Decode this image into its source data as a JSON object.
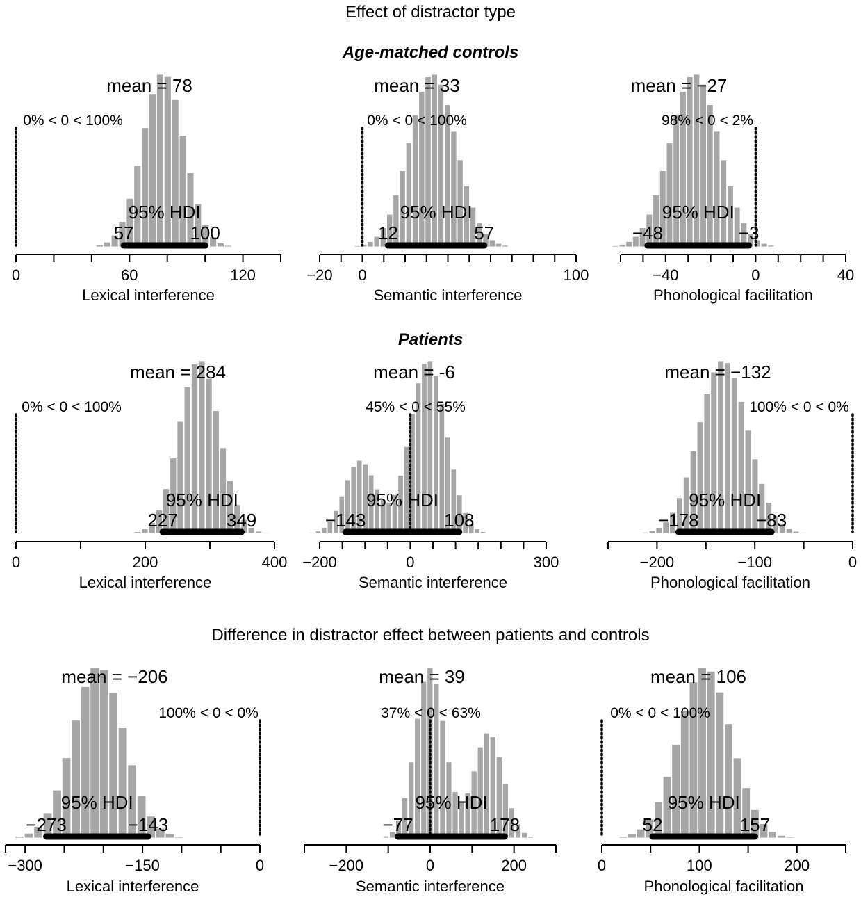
{
  "titles": {
    "main": "Effect of distractor type",
    "controls": "Age-matched controls",
    "patients": "Patients",
    "difference": "Difference in distractor effect between patients and controls"
  },
  "colors": {
    "bars": "#a6a6a6",
    "bar_edge": "#ffffff",
    "hdi": "#000000",
    "axis": "#000000"
  },
  "chart_data": [
    {
      "type": "bar",
      "group": "controls",
      "xlabel": "Lexical interference",
      "mean_label": "mean = 78",
      "mean": 78,
      "sd": 11,
      "xlim": [
        0,
        140
      ],
      "ticks": [
        0,
        20,
        40,
        60,
        80,
        100,
        120,
        140
      ],
      "tick_labels": {
        "0": "0",
        "60": "60",
        "120": "120"
      },
      "hdi_label": "95% HDI",
      "hdi": [
        57,
        100
      ],
      "hdi_low_label": "57",
      "hdi_high_label": "100",
      "ref_label": "0% < 0 < 100%",
      "ref": 0,
      "bin": 4
    },
    {
      "type": "bar",
      "group": "controls",
      "xlabel": "Semantic interference",
      "mean_label": "mean = 33",
      "mean": 33,
      "sd": 11,
      "xlim": [
        -20,
        100
      ],
      "ticks": [
        -20,
        -10,
        0,
        10,
        20,
        30,
        40,
        50,
        60,
        70,
        80,
        90,
        100
      ],
      "tick_labels": {
        "-20": "−20",
        "0": "0",
        "100": "100"
      },
      "hdi_label": "95% HDI",
      "hdi": [
        12,
        57
      ],
      "hdi_low_label": "12",
      "hdi_high_label": "57",
      "ref_label": "0% < 0 < 100%",
      "ref": 0,
      "bin": 3
    },
    {
      "type": "bar",
      "group": "controls",
      "xlabel": "Phonological facilitation",
      "mean_label": "mean = −27",
      "mean": -27,
      "sd": 11,
      "xlim": [
        -60,
        40
      ],
      "ticks": [
        -60,
        -50,
        -40,
        -30,
        -20,
        -10,
        0,
        10,
        20,
        30,
        40
      ],
      "tick_labels": {
        "-40": "−40",
        "0": "0",
        "40": "40"
      },
      "hdi_label": "95% HDI",
      "hdi": [
        -48,
        -3
      ],
      "hdi_low_label": "−48",
      "hdi_high_label": "−3",
      "ref_label": "98% < 0 < 2%",
      "ref": 0,
      "bin": 3
    },
    {
      "type": "bar",
      "group": "patients",
      "xlabel": "Lexical interference",
      "mean_label": "mean = 284",
      "mean": 284,
      "sd": 31,
      "xlim": [
        0,
        400
      ],
      "ticks": [
        0,
        100,
        200,
        300,
        400
      ],
      "tick_labels": {
        "0": "0",
        "200": "200",
        "400": "400"
      },
      "hdi_label": "95% HDI",
      "hdi": [
        227,
        349
      ],
      "hdi_low_label": "227",
      "hdi_high_label": "349",
      "ref_label": "0% < 0 < 100%",
      "ref": 0,
      "bin": 11
    },
    {
      "type": "bar",
      "group": "patients",
      "xlabel": "Semantic interference",
      "mean_label": "mean = -6",
      "mean": -6,
      "sd": 70,
      "bimodal": [
        [
          -110,
          35,
          0.42
        ],
        [
          40,
          40,
          1.0
        ]
      ],
      "xlim": [
        -200,
        300
      ],
      "ticks": [
        -200,
        -150,
        -100,
        -50,
        0,
        50,
        100,
        150,
        200,
        250,
        300
      ],
      "tick_labels": {
        "-200": "−200",
        "0": "0",
        "300": "300"
      },
      "hdi_label": "95% HDI",
      "hdi": [
        -143,
        108
      ],
      "hdi_low_label": "−143",
      "hdi_high_label": "108",
      "ref_label": "45% < 0 < 55%",
      "ref": 0,
      "bin": 13
    },
    {
      "type": "bar",
      "group": "patients",
      "xlabel": "Phonological facilitation",
      "mean_label": "mean = −132",
      "mean": -132,
      "sd": 25,
      "xlim": [
        -250,
        0
      ],
      "ticks": [
        -250,
        -200,
        -150,
        -100,
        -50,
        0
      ],
      "tick_labels": {
        "-200": "−200",
        "-100": "−100",
        "0": "0"
      },
      "hdi_label": "95% HDI",
      "hdi": [
        -178,
        -83
      ],
      "hdi_low_label": "−178",
      "hdi_high_label": "−83",
      "ref_label": "100% < 0 < 0%",
      "ref": 0,
      "bin": 7
    },
    {
      "type": "bar",
      "group": "difference",
      "xlabel": "Lexical interference",
      "mean_label": "mean = −206",
      "mean": -206,
      "sd": 33,
      "xlim": [
        -325,
        0
      ],
      "ticks": [
        -325,
        -300,
        -250,
        -200,
        -150,
        -100,
        -50,
        0
      ],
      "tick_labels": {
        "-300": "−300",
        "-150": "−150",
        "0": "0"
      },
      "hdi_label": "95% HDI",
      "hdi": [
        -273,
        -143
      ],
      "hdi_low_label": "−273",
      "hdi_high_label": "−143",
      "ref_label": "100% < 0 < 0%",
      "ref": 0,
      "bin": 12
    },
    {
      "type": "bar",
      "group": "difference",
      "xlabel": "Semantic interference",
      "mean_label": "mean = 39",
      "mean": 39,
      "sd": 65,
      "bimodal": [
        [
          0,
          35,
          1.0
        ],
        [
          140,
          35,
          0.62
        ]
      ],
      "xlim": [
        -300,
        300
      ],
      "ticks": [
        -300,
        -200,
        -100,
        0,
        100,
        200,
        300
      ],
      "tick_labels": {
        "-200": "−200",
        "0": "0",
        "200": "200"
      },
      "hdi_label": "95% HDI",
      "hdi": [
        -77,
        178
      ],
      "hdi_low_label": "−77",
      "hdi_high_label": "178",
      "ref_label": "37% < 0 < 63%",
      "ref": 0,
      "bin": 15
    },
    {
      "type": "bar",
      "group": "difference",
      "xlabel": "Phonological facilitation",
      "mean_label": "mean = 106",
      "mean": 106,
      "sd": 27,
      "xlim": [
        0,
        250
      ],
      "ticks": [
        0,
        50,
        100,
        150,
        200,
        250
      ],
      "tick_labels": {
        "0": "0",
        "100": "100",
        "200": "200"
      },
      "hdi_label": "95% HDI",
      "hdi": [
        52,
        157
      ],
      "hdi_low_label": "52",
      "hdi_high_label": "157",
      "ref_label": "0% < 0 < 100%",
      "ref": 0,
      "bin": 9
    }
  ]
}
